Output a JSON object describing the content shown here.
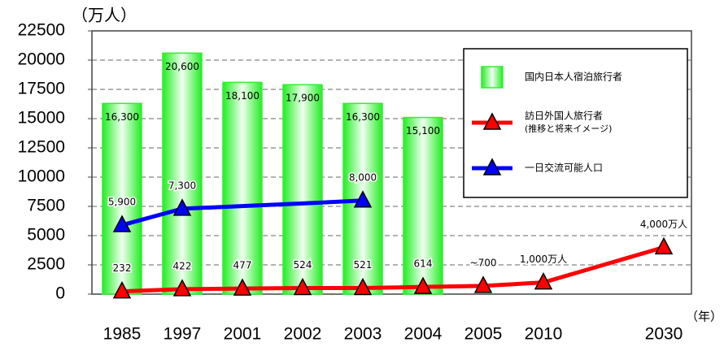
{
  "chart_data": {
    "type": "combo",
    "y_unit": "（万人）",
    "x_unit": "（年）",
    "categories": [
      "1985",
      "1997",
      "2001",
      "2002",
      "2003",
      "2004",
      "2005",
      "2010",
      null,
      "2030"
    ],
    "ylim": [
      0,
      22500
    ],
    "yticks": [
      0,
      2500,
      5000,
      7500,
      10000,
      12500,
      15000,
      17500,
      20000,
      22500
    ],
    "grid": true,
    "legend": "upper right",
    "series": [
      {
        "name": "国内日本人宿泊旅行者",
        "type": "bar",
        "color": "#33ee33",
        "values": [
          16300,
          20600,
          18100,
          17900,
          16300,
          15100,
          null,
          null,
          null,
          null
        ],
        "value_labels": [
          "16,300",
          "20,600",
          "18,100",
          "17,900",
          "16,300",
          "15,100",
          null,
          null,
          null,
          null
        ]
      },
      {
        "name": "訪日外国人旅行者",
        "note": "(推移と将来イメージ)",
        "type": "line",
        "color": "#ff0000",
        "values": [
          232,
          422,
          477,
          524,
          521,
          614,
          700,
          1000,
          2500,
          4000
        ],
        "value_labels": [
          "232",
          "422",
          "477",
          "524",
          "521",
          "614",
          "~700",
          "1,000万人",
          null,
          "4,000万人"
        ]
      },
      {
        "name": "一日交流可能人口",
        "type": "line",
        "color": "#0000ff",
        "values": [
          5900,
          7300,
          7525,
          7750,
          8000,
          null,
          null,
          null,
          null,
          null
        ],
        "value_labels": [
          "5,900",
          "7,300",
          null,
          null,
          "8,000",
          null,
          null,
          null,
          null,
          null
        ]
      }
    ]
  }
}
